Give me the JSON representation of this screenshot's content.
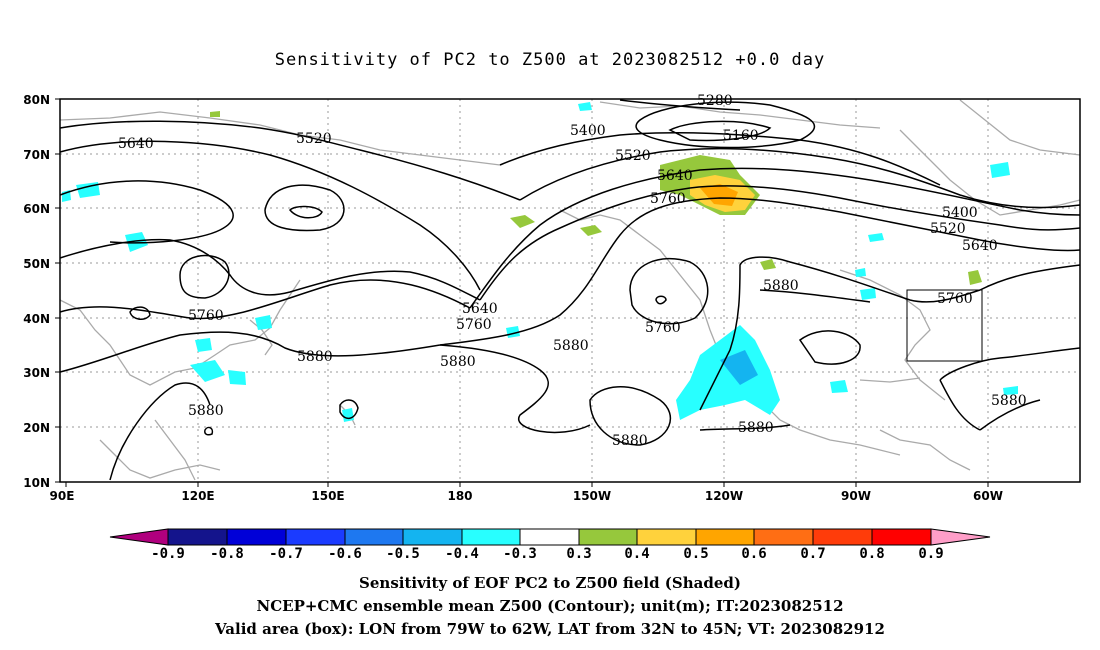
{
  "title": "Sensitivity of PC2 to Z500 at 2023082512 +0.0 day",
  "axes": {
    "lat_labels": [
      "80N",
      "70N",
      "60N",
      "50N",
      "40N",
      "30N",
      "20N",
      "10N"
    ],
    "lon_labels": [
      "90E",
      "120E",
      "150E",
      "180",
      "150W",
      "120W",
      "90W",
      "60W"
    ]
  },
  "contour_labels": {
    "c5280": "5280",
    "c5160": "5160",
    "c5400a": "5400",
    "c5520a": "5520",
    "c5640a": "5640",
    "c5520b": "5520",
    "c5640b": "5640",
    "c5760a": "5760",
    "c5400b": "5400",
    "c5520c": "5520",
    "c5640c": "5640",
    "c5760b": "5760",
    "c5880a": "5880",
    "c5880b": "5880",
    "c5640d": "5640",
    "c5760c": "5760",
    "c5880c": "5880",
    "c5880d": "5880",
    "c5760d": "5760",
    "c5880e": "5880",
    "c5880f": "5880",
    "c5880g": "5880",
    "c5760e": "5760",
    "c5880h": "5880"
  },
  "colorbar": {
    "labels": [
      "-0.9",
      "-0.8",
      "-0.7",
      "-0.6",
      "-0.5",
      "-0.4",
      "-0.3",
      "0.3",
      "0.4",
      "0.5",
      "0.6",
      "0.7",
      "0.8",
      "0.9"
    ],
    "colors": [
      "#b0007e",
      "#14148c",
      "#0000d8",
      "#1b3bff",
      "#1e78f0",
      "#14b4f0",
      "#28ffff",
      "#ffffff",
      "#96c83c",
      "#ffd23c",
      "#ffa500",
      "#ff6e14",
      "#ff3c0a",
      "#ff0000",
      "#ff9ec8"
    ]
  },
  "footer": {
    "line1": "Sensitivity of EOF PC2 to Z500 field (Shaded)",
    "line2": "NCEP+CMC ensemble mean Z500 (Contour); unit(m); IT:2023082512",
    "line3": "Valid area (box): LON from 79W to 62W, LAT from 32N to 45N; VT: 2023082912"
  }
}
